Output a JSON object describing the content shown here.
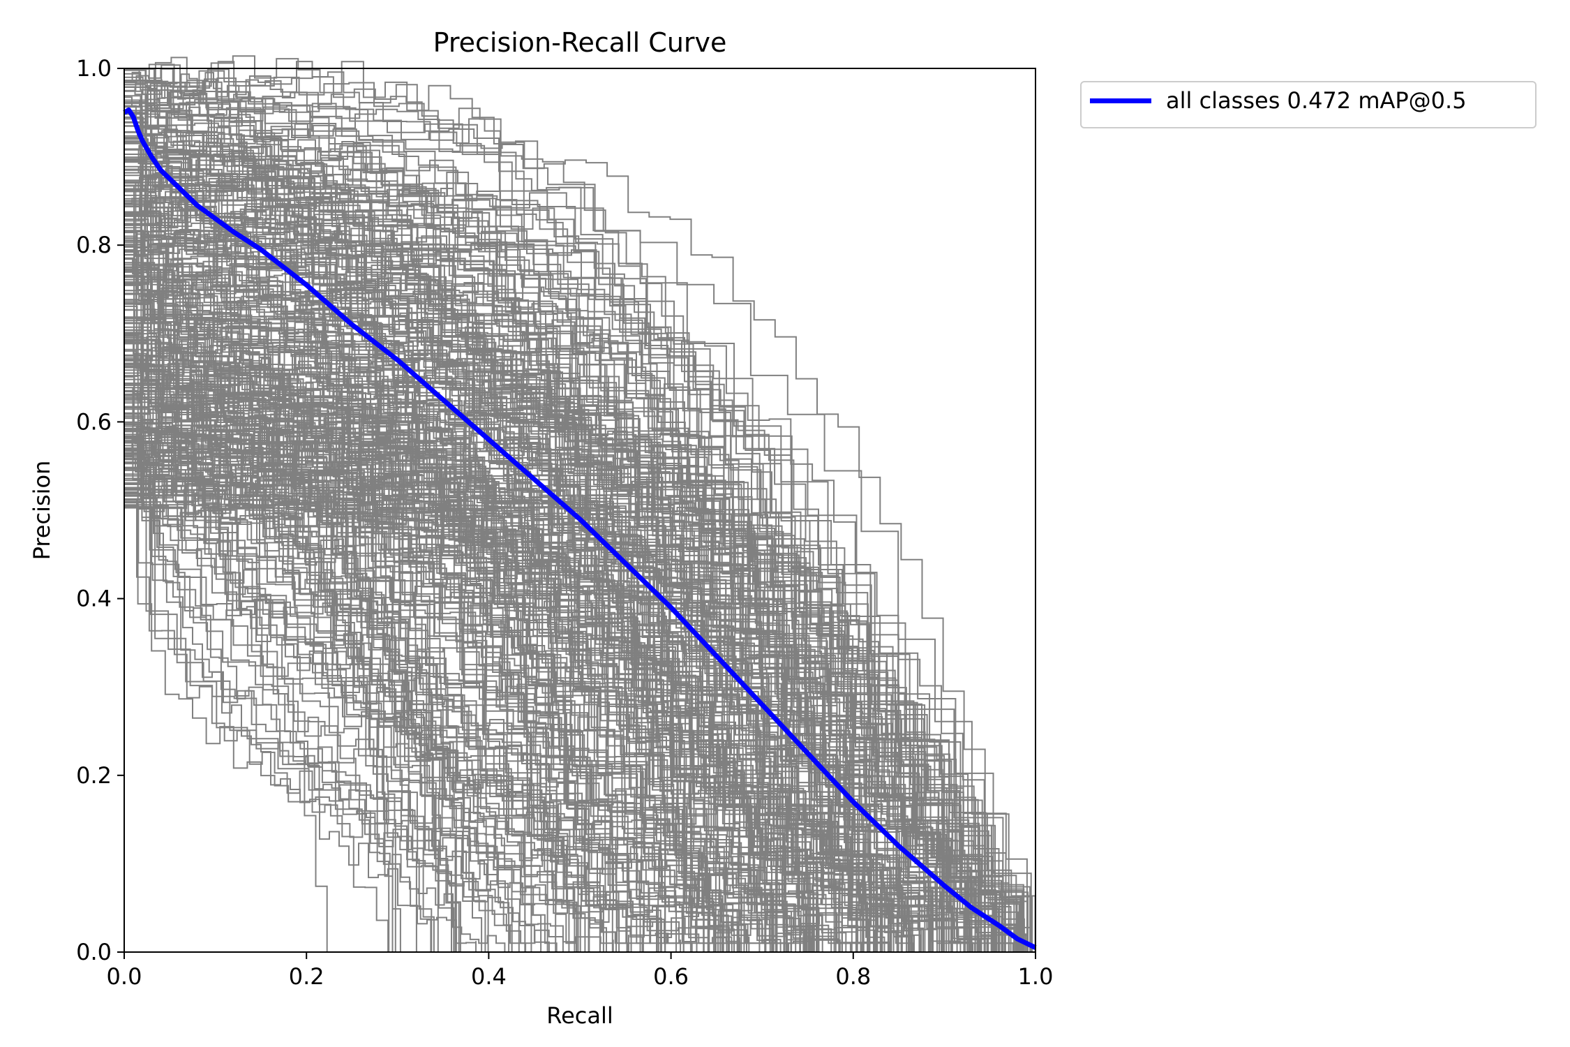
{
  "chart_data": {
    "type": "line",
    "title": "Precision-Recall Curve",
    "xlabel": "Recall",
    "ylabel": "Precision",
    "xlim": [
      0,
      1
    ],
    "ylim": [
      0,
      1
    ],
    "xticks": [
      "0.0",
      "0.2",
      "0.4",
      "0.6",
      "0.8",
      "1.0"
    ],
    "yticks": [
      "0.0",
      "0.2",
      "0.4",
      "0.6",
      "0.8",
      "1.0"
    ],
    "grid": false,
    "legend_position": "outside-top-right",
    "colors": {
      "mean_series": "#0000ff",
      "per_class_series": "#808080"
    },
    "per_class_curves": "many unlabeled grey step curves (one per class) filling the plot area",
    "series": [
      {
        "name": "all classes 0.472 mAP@0.5",
        "x": [
          0.0,
          0.005,
          0.01,
          0.015,
          0.02,
          0.03,
          0.04,
          0.06,
          0.08,
          0.1,
          0.12,
          0.15,
          0.2,
          0.25,
          0.3,
          0.35,
          0.4,
          0.45,
          0.5,
          0.55,
          0.6,
          0.65,
          0.7,
          0.75,
          0.8,
          0.85,
          0.9,
          0.93,
          0.96,
          0.98,
          1.0
        ],
        "y": [
          0.95,
          0.953,
          0.945,
          0.93,
          0.918,
          0.9,
          0.885,
          0.865,
          0.845,
          0.83,
          0.815,
          0.795,
          0.755,
          0.71,
          0.67,
          0.625,
          0.58,
          0.535,
          0.49,
          0.44,
          0.39,
          0.335,
          0.28,
          0.225,
          0.17,
          0.12,
          0.075,
          0.05,
          0.03,
          0.015,
          0.005
        ]
      }
    ]
  }
}
